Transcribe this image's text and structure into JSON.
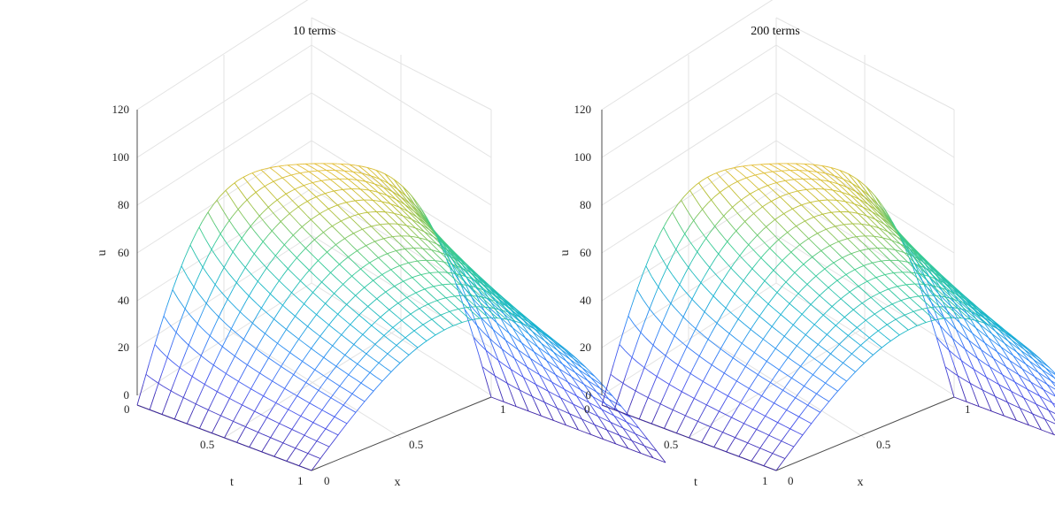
{
  "chart_data": [
    {
      "type": "surface-mesh",
      "title": "10 terms",
      "terms": 10,
      "xlabel": "x",
      "ylabel": "t",
      "zlabel": "u",
      "x_ticks": [
        "0",
        "0.5",
        "1"
      ],
      "y_ticks": [
        "0",
        "0.5",
        "1"
      ],
      "z_ticks": [
        "0",
        "20",
        "40",
        "60",
        "80",
        "100",
        "120"
      ],
      "xlim": [
        0,
        1
      ],
      "ylim": [
        0,
        1
      ],
      "zlim": [
        0,
        120
      ],
      "grid": true,
      "colormap": "parula"
    },
    {
      "type": "surface-mesh",
      "title": "200 terms",
      "terms": 200,
      "xlabel": "x",
      "ylabel": "t",
      "zlabel": "u",
      "x_ticks": [
        "0",
        "0.5",
        "1"
      ],
      "y_ticks": [
        "0",
        "0.5",
        "1"
      ],
      "z_ticks": [
        "0",
        "20",
        "40",
        "60",
        "80",
        "100",
        "120"
      ],
      "xlim": [
        0,
        1
      ],
      "ylim": [
        0,
        1
      ],
      "zlim": [
        0,
        120
      ],
      "grid": true,
      "colormap": "parula"
    }
  ]
}
